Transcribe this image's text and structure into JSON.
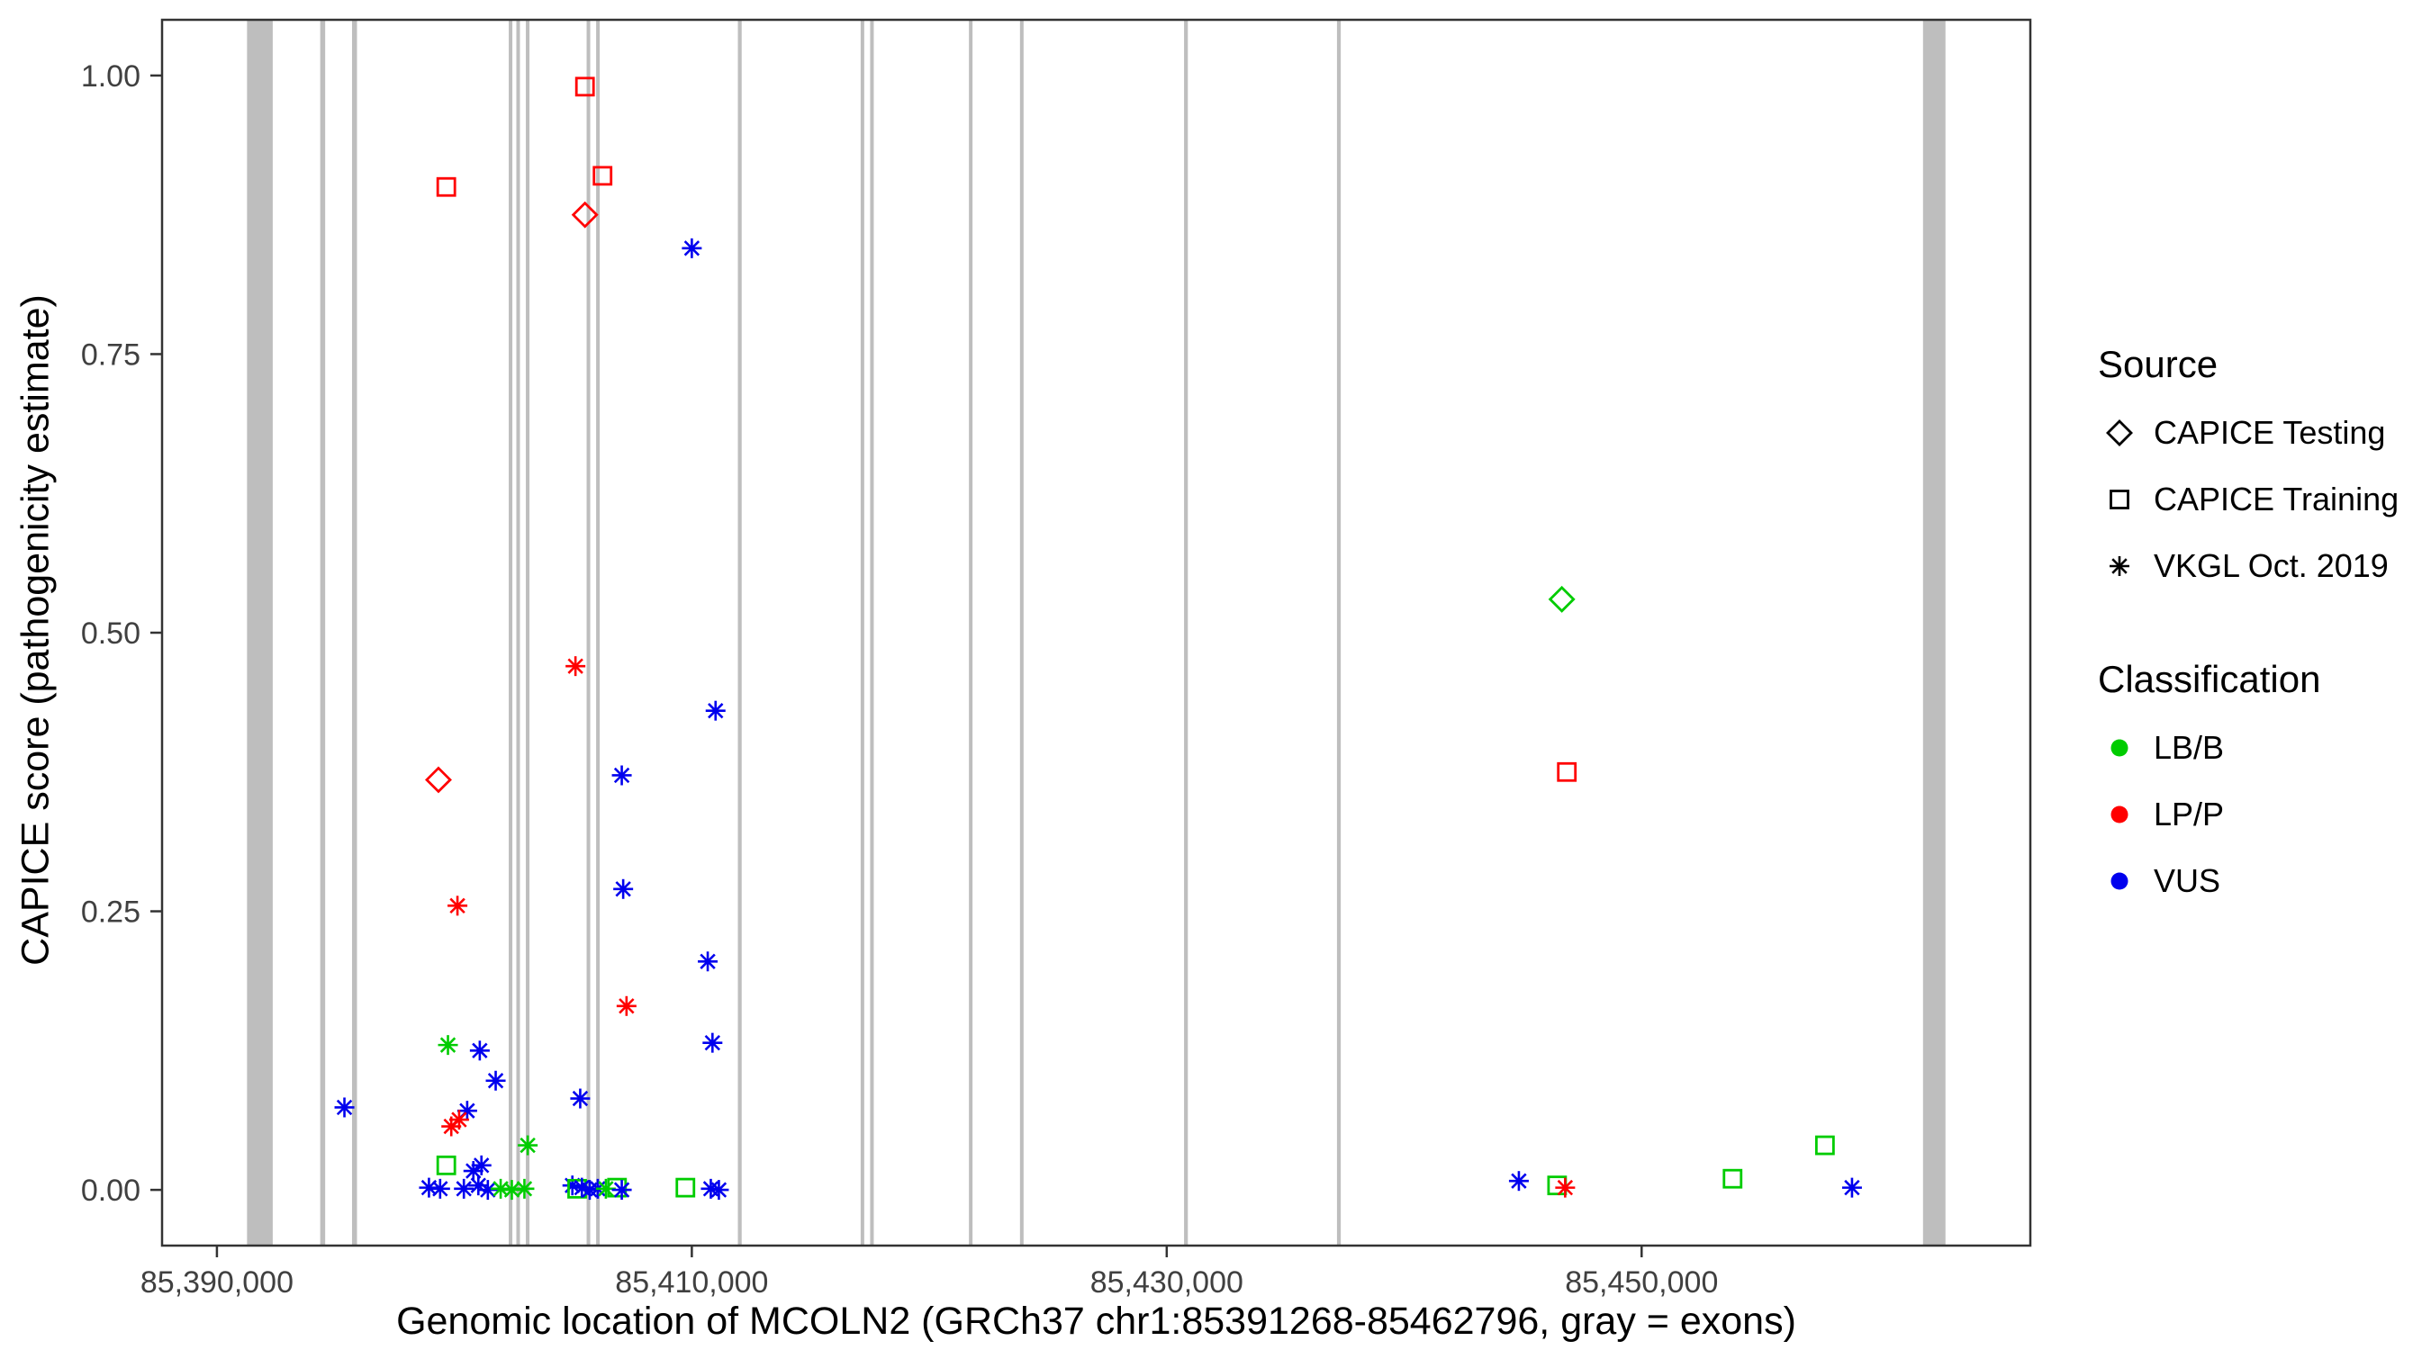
{
  "legend": {
    "source": {
      "title": "Source",
      "items": [
        {
          "label": "CAPICE Testing",
          "symbol": "diamond"
        },
        {
          "label": "CAPICE Training",
          "symbol": "square"
        },
        {
          "label": "VKGL Oct. 2019",
          "symbol": "asterisk"
        }
      ]
    },
    "classification": {
      "title": "Classification",
      "items": [
        {
          "label": "LB/B",
          "color": "#00CC00"
        },
        {
          "label": "LP/P",
          "color": "#FF0000"
        },
        {
          "label": "VUS",
          "color": "#0000EE"
        }
      ]
    }
  },
  "chart_data": {
    "type": "scatter",
    "title": "",
    "xlabel": "Genomic location of MCOLN2 (GRCh37 chr1:85391268-85462796, gray = exons)",
    "ylabel": "CAPICE score (pathogenicity estimate)",
    "x_domain": [
      85387690,
      85466370
    ],
    "y_domain": [
      -0.05,
      1.05
    ],
    "x_ticks": [
      {
        "value": 85390000,
        "label": "85,390,000"
      },
      {
        "value": 85410000,
        "label": "85,410,000"
      },
      {
        "value": 85430000,
        "label": "85,430,000"
      },
      {
        "value": 85450000,
        "label": "85,450,000"
      }
    ],
    "y_ticks": [
      {
        "value": 0.0,
        "label": "0.00"
      },
      {
        "value": 0.25,
        "label": "0.25"
      },
      {
        "value": 0.5,
        "label": "0.50"
      },
      {
        "value": 0.75,
        "label": "0.75"
      },
      {
        "value": 1.0,
        "label": "1.00"
      }
    ],
    "colors": {
      "exon": "#BEBEBE",
      "border": "#333333",
      "tick": "#333333",
      "axis_text": "#404040"
    },
    "classification_colors": {
      "LB/B": "#00CC00",
      "LP/P": "#FF0000",
      "VUS": "#0000EE"
    },
    "source_symbols": {
      "CAPICE Testing": "diamond",
      "CAPICE Training": "square",
      "VKGL Oct. 2019": "asterisk"
    },
    "exons": [
      [
        85391268,
        85392350
      ],
      [
        85394350,
        85394560
      ],
      [
        85395690,
        85395900
      ],
      [
        85402290,
        85402440
      ],
      [
        85402610,
        85402760
      ],
      [
        85403010,
        85403160
      ],
      [
        85405570,
        85405720
      ],
      [
        85405970,
        85406120
      ],
      [
        85411940,
        85412100
      ],
      [
        85417110,
        85417260
      ],
      [
        85417510,
        85417660
      ],
      [
        85421670,
        85421820
      ],
      [
        85423820,
        85423970
      ],
      [
        85430730,
        85430890
      ],
      [
        85437170,
        85437330
      ],
      [
        85461850,
        85462796
      ]
    ],
    "points": [
      {
        "x": 85405500,
        "y": 0.99,
        "source": "CAPICE Training",
        "classification": "LP/P"
      },
      {
        "x": 85406240,
        "y": 0.91,
        "source": "CAPICE Training",
        "classification": "LP/P"
      },
      {
        "x": 85399660,
        "y": 0.9,
        "source": "CAPICE Training",
        "classification": "LP/P"
      },
      {
        "x": 85405500,
        "y": 0.875,
        "source": "CAPICE Testing",
        "classification": "LP/P"
      },
      {
        "x": 85410000,
        "y": 0.845,
        "source": "VKGL Oct. 2019",
        "classification": "VUS"
      },
      {
        "x": 85446640,
        "y": 0.53,
        "source": "CAPICE Testing",
        "classification": "LB/B"
      },
      {
        "x": 85405100,
        "y": 0.47,
        "source": "VKGL Oct. 2019",
        "classification": "LP/P"
      },
      {
        "x": 85411000,
        "y": 0.43,
        "source": "VKGL Oct. 2019",
        "classification": "VUS"
      },
      {
        "x": 85446850,
        "y": 0.375,
        "source": "CAPICE Training",
        "classification": "LP/P"
      },
      {
        "x": 85407050,
        "y": 0.372,
        "source": "VKGL Oct. 2019",
        "classification": "VUS"
      },
      {
        "x": 85399330,
        "y": 0.368,
        "source": "CAPICE Testing",
        "classification": "LP/P"
      },
      {
        "x": 85407110,
        "y": 0.27,
        "source": "VKGL Oct. 2019",
        "classification": "VUS"
      },
      {
        "x": 85400130,
        "y": 0.255,
        "source": "VKGL Oct. 2019",
        "classification": "LP/P"
      },
      {
        "x": 85410670,
        "y": 0.205,
        "source": "VKGL Oct. 2019",
        "classification": "VUS"
      },
      {
        "x": 85407250,
        "y": 0.165,
        "source": "VKGL Oct. 2019",
        "classification": "LP/P"
      },
      {
        "x": 85410870,
        "y": 0.132,
        "source": "VKGL Oct. 2019",
        "classification": "VUS"
      },
      {
        "x": 85399730,
        "y": 0.13,
        "source": "VKGL Oct. 2019",
        "classification": "LB/B"
      },
      {
        "x": 85401070,
        "y": 0.125,
        "source": "VKGL Oct. 2019",
        "classification": "VUS"
      },
      {
        "x": 85401740,
        "y": 0.098,
        "source": "VKGL Oct. 2019",
        "classification": "VUS"
      },
      {
        "x": 85405300,
        "y": 0.082,
        "source": "VKGL Oct. 2019",
        "classification": "VUS"
      },
      {
        "x": 85395370,
        "y": 0.074,
        "source": "VKGL Oct. 2019",
        "classification": "VUS"
      },
      {
        "x": 85400540,
        "y": 0.071,
        "source": "VKGL Oct. 2019",
        "classification": "VUS"
      },
      {
        "x": 85400200,
        "y": 0.063,
        "source": "VKGL Oct. 2019",
        "classification": "LP/P"
      },
      {
        "x": 85399870,
        "y": 0.057,
        "source": "VKGL Oct. 2019",
        "classification": "LP/P"
      },
      {
        "x": 85403090,
        "y": 0.04,
        "source": "VKGL Oct. 2019",
        "classification": "LB/B"
      },
      {
        "x": 85457720,
        "y": 0.04,
        "source": "CAPICE Training",
        "classification": "LB/B"
      },
      {
        "x": 85399660,
        "y": 0.022,
        "source": "CAPICE Training",
        "classification": "LB/B"
      },
      {
        "x": 85401140,
        "y": 0.022,
        "source": "VKGL Oct. 2019",
        "classification": "VUS"
      },
      {
        "x": 85400800,
        "y": 0.017,
        "source": "VKGL Oct. 2019",
        "classification": "VUS"
      },
      {
        "x": 85453830,
        "y": 0.01,
        "source": "CAPICE Training",
        "classification": "LB/B"
      },
      {
        "x": 85444830,
        "y": 0.008,
        "source": "VKGL Oct. 2019",
        "classification": "VUS"
      },
      {
        "x": 85446440,
        "y": 0.004,
        "source": "CAPICE Training",
        "classification": "LB/B"
      },
      {
        "x": 85446780,
        "y": 0.002,
        "source": "VKGL Oct. 2019",
        "classification": "LP/P"
      },
      {
        "x": 85401010,
        "y": 0.004,
        "source": "VKGL Oct. 2019",
        "classification": "VUS"
      },
      {
        "x": 85404970,
        "y": 0.004,
        "source": "VKGL Oct. 2019",
        "classification": "VUS"
      },
      {
        "x": 85398930,
        "y": 0.002,
        "source": "VKGL Oct. 2019",
        "classification": "VUS"
      },
      {
        "x": 85399400,
        "y": 0.001,
        "source": "VKGL Oct. 2019",
        "classification": "VUS"
      },
      {
        "x": 85400400,
        "y": 0.001,
        "source": "VKGL Oct. 2019",
        "classification": "VUS"
      },
      {
        "x": 85401410,
        "y": 0.0,
        "source": "VKGL Oct. 2019",
        "classification": "VUS"
      },
      {
        "x": 85401950,
        "y": 0.001,
        "source": "VKGL Oct. 2019",
        "classification": "LB/B"
      },
      {
        "x": 85402420,
        "y": 0.0,
        "source": "VKGL Oct. 2019",
        "classification": "LB/B"
      },
      {
        "x": 85402950,
        "y": 0.001,
        "source": "VKGL Oct. 2019",
        "classification": "LB/B"
      },
      {
        "x": 85405170,
        "y": 0.001,
        "source": "CAPICE Training",
        "classification": "LB/B"
      },
      {
        "x": 85405370,
        "y": 0.002,
        "source": "VKGL Oct. 2019",
        "classification": "VUS"
      },
      {
        "x": 85405700,
        "y": 0.0,
        "source": "VKGL Oct. 2019",
        "classification": "VUS"
      },
      {
        "x": 85406040,
        "y": 0.001,
        "source": "VKGL Oct. 2019",
        "classification": "VUS"
      },
      {
        "x": 85406380,
        "y": 0.001,
        "source": "VKGL Oct. 2019",
        "classification": "LB/B"
      },
      {
        "x": 85406850,
        "y": 0.002,
        "source": "CAPICE Training",
        "classification": "LB/B"
      },
      {
        "x": 85407050,
        "y": 0.0,
        "source": "VKGL Oct. 2019",
        "classification": "VUS"
      },
      {
        "x": 85409730,
        "y": 0.002,
        "source": "CAPICE Training",
        "classification": "LB/B"
      },
      {
        "x": 85410800,
        "y": 0.001,
        "source": "VKGL Oct. 2019",
        "classification": "VUS"
      },
      {
        "x": 85411140,
        "y": 0.0,
        "source": "VKGL Oct. 2019",
        "classification": "VUS"
      },
      {
        "x": 85458860,
        "y": 0.002,
        "source": "VKGL Oct. 2019",
        "classification": "VUS"
      }
    ]
  }
}
